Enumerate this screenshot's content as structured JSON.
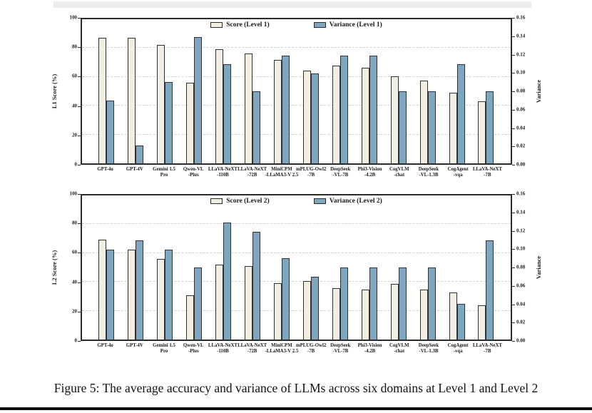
{
  "figure": {
    "caption": "Figure 5: The average accuracy and variance of LLMs across six domains at Level 1 and Level 2"
  },
  "colors": {
    "score_fill": "#f2eee2",
    "variance_fill": "#7ea6bf",
    "bar_border": "#2f3337",
    "axis_border": "#2b2b2b",
    "gridline": "#d2d2d0",
    "text": "#1a1a1a"
  },
  "chart_data": [
    {
      "type": "bar",
      "title": "",
      "legend_position": "top center inside, no frame",
      "grid": "horizontal dashed at left-axis ticks 20/40/60/80",
      "ylabel_left": "L1 Score (%)",
      "ylabel_right": "Variance",
      "ylim_left": [
        0,
        100
      ],
      "ylim_right": [
        0,
        0.16
      ],
      "yticks_left": [
        "0",
        "20",
        "40",
        "60",
        "80",
        "100"
      ],
      "yticks_right": [
        "0.00",
        "0.02",
        "0.04",
        "0.06",
        "0.08",
        "0.10",
        "0.12",
        "0.14",
        "0.16"
      ],
      "categories": [
        [
          "GPT-4o"
        ],
        [
          "GPT-4V"
        ],
        [
          "Gemini 1.5",
          "Pro"
        ],
        [
          "Qwen-VL",
          "-Plus"
        ],
        [
          "LLaVA-NeXT",
          "-110B"
        ],
        [
          "LLaVA-NeXT",
          "-72B"
        ],
        [
          "MiniCPM",
          "-LLaMA3-V 2.5"
        ],
        [
          "mPLUG-Owl2",
          "-7B"
        ],
        [
          "DeepSeek",
          "-VL-7B"
        ],
        [
          "Phi3-Vision",
          "-4.2B"
        ],
        [
          "CogVLM",
          "-chat"
        ],
        [
          "DeepSeek",
          "-VL-1.3B"
        ],
        [
          "CogAgent",
          "-vqa"
        ],
        [
          "LLaVA-NeXT",
          "-7B"
        ]
      ],
      "series": [
        {
          "name": "Score (Level 1)",
          "axis": "left",
          "color_key": "score_fill",
          "values": [
            87,
            87,
            82,
            56,
            79,
            76,
            72,
            64.5,
            68,
            66.5,
            60.5,
            57.5,
            49,
            43
          ]
        },
        {
          "name": "Variance (Level 1)",
          "axis": "right",
          "color_key": "variance_fill",
          "values": [
            0.07,
            0.02,
            0.09,
            0.14,
            0.11,
            0.08,
            0.12,
            0.1,
            0.12,
            0.12,
            0.08,
            0.08,
            0.11,
            0.08
          ]
        }
      ]
    },
    {
      "type": "bar",
      "title": "",
      "legend_position": "top center inside, no frame",
      "grid": "horizontal dashed at left-axis ticks 20/40/60/80",
      "ylabel_left": "L2 Score (%)",
      "ylabel_right": "Variance",
      "ylim_left": [
        0,
        100
      ],
      "ylim_right": [
        0,
        0.16
      ],
      "yticks_left": [
        "0",
        "20",
        "40",
        "60",
        "80",
        "100"
      ],
      "yticks_right": [
        "0.00",
        "0.02",
        "0.04",
        "0.06",
        "0.08",
        "0.10",
        "0.12",
        "0.14",
        "0.16"
      ],
      "categories": [
        [
          "GPT-4o"
        ],
        [
          "GPT-4V"
        ],
        [
          "Gemini 1.5",
          "Pro"
        ],
        [
          "Qwen-VL",
          "-Plus"
        ],
        [
          "LLaVA-NeXT",
          "-110B"
        ],
        [
          "LLaVA-NeXT",
          "-72B"
        ],
        [
          "MiniCPM",
          "-LLaMA3-V 2.5"
        ],
        [
          "mPLUG-Owl2",
          "-7B"
        ],
        [
          "DeepSeek",
          "-VL-7B"
        ],
        [
          "Phi3-Vision",
          "-4.2B"
        ],
        [
          "CogVLM",
          "-chat"
        ],
        [
          "DeepSeek",
          "-VL-1.3B"
        ],
        [
          "CogAgent",
          "-vqa"
        ],
        [
          "LLaVA-NeXT",
          "-7B"
        ]
      ],
      "series": [
        {
          "name": "Score (Level 2)",
          "axis": "left",
          "color_key": "score_fill",
          "values": [
            69.5,
            62.5,
            56,
            30.5,
            52,
            51,
            39,
            40.5,
            35.5,
            34.5,
            38.5,
            34.5,
            32.5,
            24
          ]
        },
        {
          "name": "Variance (Level 2)",
          "axis": "right",
          "color_key": "variance_fill",
          "values": [
            0.1,
            0.11,
            0.1,
            0.08,
            0.13,
            0.12,
            0.09,
            0.07,
            0.08,
            0.08,
            0.08,
            0.08,
            0.04,
            0.11
          ]
        }
      ]
    }
  ]
}
